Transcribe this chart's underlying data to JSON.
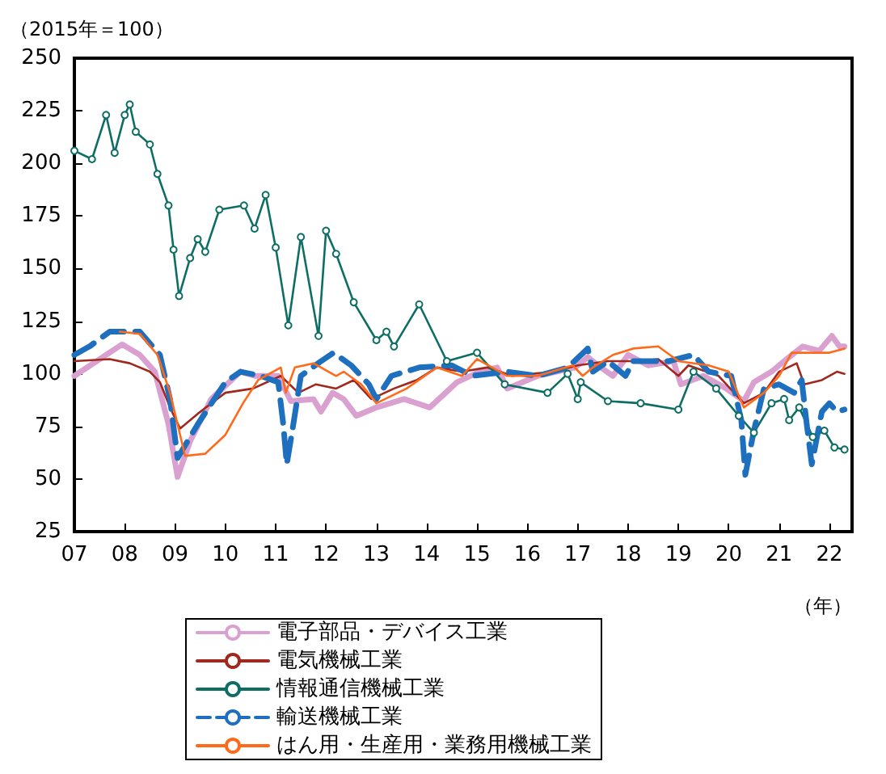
{
  "chart_data": {
    "type": "line",
    "ylabel": "（2015年＝100）",
    "xlabel": "（年）",
    "xlim": [
      2007,
      2022.45
    ],
    "xticks": [
      {
        "value": 2007,
        "label": "07"
      },
      {
        "value": 2008,
        "label": "08"
      },
      {
        "value": 2009,
        "label": "09"
      },
      {
        "value": 2010,
        "label": "10"
      },
      {
        "value": 2011,
        "label": "11"
      },
      {
        "value": 2012,
        "label": "12"
      },
      {
        "value": 2013,
        "label": "13"
      },
      {
        "value": 2014,
        "label": "14"
      },
      {
        "value": 2015,
        "label": "15"
      },
      {
        "value": 2016,
        "label": "16"
      },
      {
        "value": 2017,
        "label": "17"
      },
      {
        "value": 2018,
        "label": "18"
      },
      {
        "value": 2019,
        "label": "19"
      },
      {
        "value": 2020,
        "label": "20"
      },
      {
        "value": 2021,
        "label": "21"
      },
      {
        "value": 2022,
        "label": "22"
      }
    ],
    "ylim": [
      25,
      250
    ],
    "yticks": [
      25,
      50,
      75,
      100,
      125,
      150,
      175,
      200,
      225,
      250
    ],
    "grid": false,
    "legend": "bottom",
    "series": [
      {
        "name": "電子部品・デバイス工業",
        "color": "#d9a0d0",
        "line_style": "solid",
        "marker": "none",
        "x": [
          2007,
          2007.95,
          2008.3,
          2008.6,
          2008.87,
          2009.05,
          2009.3,
          2009.72,
          2010.3,
          2010.6,
          2011.05,
          2011.3,
          2011.75,
          2011.9,
          2012.13,
          2012.35,
          2012.6,
          2013,
          2013.55,
          2014.06,
          2014.6,
          2015.05,
          2015.4,
          2015.6,
          2016.2,
          2016.95,
          2017.2,
          2017.4,
          2017.7,
          2018,
          2018.4,
          2018.9,
          2019.05,
          2019.5,
          2019.95,
          2020.3,
          2020.5,
          2020.85,
          2021.15,
          2021.47,
          2021.8,
          2022.05,
          2022.2,
          2022.3
        ],
        "values": [
          99,
          114,
          109,
          101,
          76,
          51,
          68,
          88,
          101,
          99,
          99,
          87,
          88,
          82,
          91,
          88,
          80,
          84,
          88,
          84,
          96,
          101,
          103,
          93,
          99,
          103,
          108,
          104,
          99,
          109,
          104,
          106,
          95,
          99,
          93,
          87,
          96,
          101,
          107,
          113,
          111,
          118,
          113,
          113
        ]
      },
      {
        "name": "電気機械工業",
        "color": "#a0281e",
        "line_style": "solid",
        "marker": "none",
        "x": [
          2007,
          2007.7,
          2008.1,
          2008.5,
          2008.7,
          2008.9,
          2009.1,
          2009.45,
          2010,
          2010.55,
          2011.1,
          2011.45,
          2011.8,
          2012.2,
          2012.55,
          2012.9,
          2013.35,
          2013.8,
          2014.2,
          2014.7,
          2015.2,
          2015.7,
          2016.5,
          2017,
          2017.6,
          2018.2,
          2018.6,
          2019,
          2019.2,
          2019.8,
          2020.3,
          2020.7,
          2021,
          2021.35,
          2021.5,
          2021.85,
          2022.15,
          2022.3
        ],
        "values": [
          106,
          107,
          105,
          101,
          96,
          84,
          74,
          81,
          91,
          93,
          99,
          91,
          95,
          93,
          97,
          88,
          93,
          97,
          103,
          101,
          103,
          99,
          101,
          104,
          106,
          106,
          107,
          99,
          104,
          99,
          86,
          91,
          101,
          105,
          95,
          97,
          101,
          100
        ]
      },
      {
        "name": "情報通信機械工業",
        "color": "#0e6e64",
        "line_style": "solid",
        "marker": "circle",
        "x": [
          2007,
          2007.35,
          2007.63,
          2007.8,
          2008,
          2008.1,
          2008.22,
          2008.5,
          2008.65,
          2008.87,
          2008.97,
          2009.08,
          2009.3,
          2009.45,
          2009.6,
          2009.88,
          2010.37,
          2010.58,
          2010.8,
          2011,
          2011.25,
          2011.5,
          2011.85,
          2012,
          2012.2,
          2012.55,
          2013,
          2013.2,
          2013.35,
          2013.85,
          2014.4,
          2015,
          2015.55,
          2016.4,
          2016.8,
          2017,
          2017.06,
          2017.6,
          2018.25,
          2019,
          2019.3,
          2019.75,
          2020.2,
          2020.5,
          2020.85,
          2021.1,
          2021.2,
          2021.4,
          2021.67,
          2021.9,
          2022.1,
          2022.3
        ],
        "values": [
          206,
          202,
          223,
          205,
          223,
          228,
          215,
          209,
          195,
          180,
          159,
          137,
          155,
          164,
          158,
          178,
          180,
          169,
          185,
          160,
          123,
          165,
          118,
          168,
          157,
          134,
          116,
          120,
          113,
          133,
          106,
          110,
          95,
          91,
          100,
          88,
          96,
          87,
          86,
          83,
          101,
          93,
          80,
          72,
          86,
          88,
          78,
          84,
          70,
          73,
          65,
          64
        ]
      },
      {
        "name": "輸送機械工業",
        "color": "#1f6fbf",
        "line_style": "dashed",
        "marker": "none",
        "x": [
          2007,
          2007.3,
          2007.7,
          2008.3,
          2008.7,
          2008.9,
          2009.05,
          2009.45,
          2010,
          2010.3,
          2010.7,
          2011.05,
          2011.15,
          2011.22,
          2011.35,
          2011.5,
          2011.9,
          2012.15,
          2012.5,
          2012.85,
          2013,
          2013.3,
          2013.85,
          2014.5,
          2014.9,
          2015.6,
          2016.2,
          2016.8,
          2017.2,
          2017.3,
          2017.6,
          2017.95,
          2018.1,
          2018.8,
          2019.3,
          2019.6,
          2020.05,
          2020.25,
          2020.33,
          2020.5,
          2020.7,
          2021,
          2021.3,
          2021.45,
          2021.55,
          2021.65,
          2021.85,
          2022,
          2022.15,
          2022.3
        ],
        "values": [
          109,
          113,
          120,
          120,
          109,
          88,
          60,
          76,
          96,
          101,
          99,
          96,
          76,
          57,
          76,
          99,
          106,
          110,
          104,
          95,
          88,
          99,
          103,
          104,
          99,
          101,
          99,
          103,
          112,
          101,
          106,
          99,
          106,
          106,
          109,
          101,
          99,
          78,
          52,
          73,
          93,
          95,
          91,
          97,
          76,
          57,
          82,
          86,
          82,
          83
        ]
      },
      {
        "name": "はん用・生産用・業務用機械工業",
        "color": "#ff6a1a",
        "line_style": "solid",
        "marker": "none",
        "x": [
          2007.9,
          2008.3,
          2008.65,
          2008.9,
          2009.2,
          2009.6,
          2010,
          2010.35,
          2010.65,
          2011.1,
          2011.2,
          2011.38,
          2011.75,
          2012.2,
          2012.35,
          2012.7,
          2013,
          2013.6,
          2014.2,
          2014.7,
          2015,
          2015.6,
          2016.2,
          2016.9,
          2017.1,
          2017.3,
          2017.7,
          2018.1,
          2018.6,
          2019,
          2019.6,
          2020,
          2020.3,
          2020.7,
          2021,
          2021.25,
          2021.65,
          2022,
          2022.3
        ],
        "values": [
          120,
          119,
          109,
          91,
          61,
          62,
          71,
          86,
          97,
          103,
          91,
          103,
          105,
          99,
          101,
          95,
          86,
          93,
          103,
          99,
          107,
          99,
          99,
          104,
          99,
          103,
          109,
          112,
          113,
          106,
          104,
          101,
          84,
          91,
          99,
          110,
          110,
          110,
          112
        ]
      }
    ]
  }
}
